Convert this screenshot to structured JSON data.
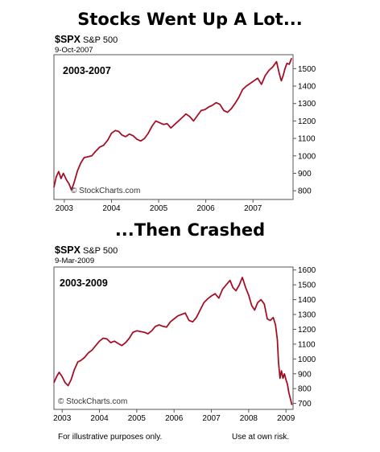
{
  "headline_top": "Stocks Went Up A Lot...",
  "headline_bottom": "...Then Crashed",
  "footer": {
    "left": "For illustrative purposes only.",
    "right": "Use at own risk."
  },
  "chart_data": [
    {
      "type": "line",
      "symbol": "$SPX",
      "index_name": "S&P 500",
      "date": "9-Oct-2007",
      "range_label": "2003-2007",
      "watermark": "© StockCharts.com",
      "x_ticks": [
        "2003",
        "2004",
        "2005",
        "2006",
        "2007"
      ],
      "x_tick_values": [
        2003.0,
        2004.0,
        2005.0,
        2006.0,
        2007.0
      ],
      "y_ticks": [
        800,
        900,
        1000,
        1100,
        1200,
        1300,
        1400,
        1500
      ],
      "ylim": [
        750,
        1580
      ],
      "xlim": [
        2002.78,
        2007.85
      ],
      "line_color": "#c0102a",
      "series": [
        {
          "x": [
            2002.78,
            2002.83,
            2002.88,
            2002.93,
            2002.98,
            2003.05,
            2003.1,
            2003.15,
            2003.2,
            2003.28,
            2003.35,
            2003.42,
            2003.5,
            2003.58,
            2003.66,
            2003.75,
            2003.83,
            2003.92,
            2004.0,
            2004.08,
            2004.15,
            2004.22,
            2004.3,
            2004.38,
            2004.46,
            2004.54,
            2004.62,
            2004.7,
            2004.78,
            2004.86,
            2004.94,
            2005.02,
            2005.1,
            2005.18,
            2005.26,
            2005.34,
            2005.42,
            2005.5,
            2005.58,
            2005.66,
            2005.74,
            2005.82,
            2005.9,
            2005.98,
            2006.06,
            2006.14,
            2006.22,
            2006.3,
            2006.38,
            2006.46,
            2006.54,
            2006.62,
            2006.7,
            2006.78,
            2006.86,
            2006.94,
            2007.02,
            2007.1,
            2007.18,
            2007.26,
            2007.34,
            2007.42,
            2007.5,
            2007.56,
            2007.6,
            2007.64,
            2007.68,
            2007.72,
            2007.77,
            2007.82
          ],
          "y": [
            820,
            880,
            910,
            870,
            900,
            860,
            840,
            805,
            840,
            915,
            960,
            990,
            995,
            1000,
            1025,
            1050,
            1060,
            1090,
            1130,
            1145,
            1140,
            1120,
            1110,
            1125,
            1115,
            1095,
            1085,
            1100,
            1130,
            1170,
            1200,
            1190,
            1180,
            1185,
            1160,
            1180,
            1200,
            1220,
            1240,
            1225,
            1200,
            1230,
            1260,
            1265,
            1280,
            1290,
            1305,
            1295,
            1260,
            1250,
            1270,
            1300,
            1335,
            1380,
            1400,
            1415,
            1430,
            1445,
            1410,
            1460,
            1490,
            1510,
            1540,
            1470,
            1430,
            1460,
            1500,
            1530,
            1525,
            1560
          ]
        }
      ]
    },
    {
      "type": "line",
      "symbol": "$SPX",
      "index_name": "S&P 500",
      "date": "9-Mar-2009",
      "range_label": "2003-2009",
      "watermark": "© StockCharts.com",
      "x_ticks": [
        "2003",
        "2004",
        "2005",
        "2006",
        "2007",
        "2008",
        "2009"
      ],
      "x_tick_values": [
        2003.0,
        2004.0,
        2005.0,
        2006.0,
        2007.0,
        2008.0,
        2009.0
      ],
      "y_ticks": [
        700,
        800,
        900,
        1000,
        1100,
        1200,
        1300,
        1400,
        1500,
        1600
      ],
      "ylim": [
        660,
        1620
      ],
      "xlim": [
        2002.78,
        2009.19
      ],
      "line_color": "#c0102a",
      "series": [
        {
          "x": [
            2002.78,
            2002.85,
            2002.92,
            2003.0,
            2003.08,
            2003.16,
            2003.24,
            2003.33,
            2003.42,
            2003.5,
            2003.6,
            2003.7,
            2003.8,
            2003.9,
            2004.0,
            2004.1,
            2004.2,
            2004.3,
            2004.4,
            2004.5,
            2004.6,
            2004.7,
            2004.8,
            2004.9,
            2005.0,
            2005.1,
            2005.2,
            2005.3,
            2005.4,
            2005.5,
            2005.6,
            2005.7,
            2005.8,
            2005.9,
            2006.0,
            2006.1,
            2006.2,
            2006.3,
            2006.4,
            2006.5,
            2006.6,
            2006.7,
            2006.8,
            2006.9,
            2007.0,
            2007.1,
            2007.2,
            2007.3,
            2007.4,
            2007.5,
            2007.58,
            2007.66,
            2007.75,
            2007.83,
            2007.92,
            2008.0,
            2008.08,
            2008.16,
            2008.24,
            2008.33,
            2008.42,
            2008.5,
            2008.58,
            2008.66,
            2008.72,
            2008.77,
            2008.8,
            2008.84,
            2008.88,
            2008.92,
            2008.96,
            2009.0,
            2009.04,
            2009.08,
            2009.12,
            2009.16
          ],
          "y": [
            840,
            880,
            910,
            880,
            840,
            820,
            860,
            930,
            980,
            990,
            1010,
            1040,
            1060,
            1090,
            1120,
            1140,
            1135,
            1110,
            1120,
            1105,
            1090,
            1110,
            1140,
            1180,
            1190,
            1185,
            1180,
            1170,
            1190,
            1220,
            1230,
            1220,
            1215,
            1250,
            1270,
            1290,
            1300,
            1310,
            1260,
            1250,
            1280,
            1330,
            1380,
            1405,
            1425,
            1440,
            1410,
            1470,
            1500,
            1530,
            1480,
            1460,
            1500,
            1550,
            1480,
            1430,
            1360,
            1330,
            1380,
            1400,
            1370,
            1270,
            1260,
            1280,
            1230,
            1130,
            980,
            870,
            920,
            870,
            900,
            860,
            830,
            770,
            730,
            690
          ]
        }
      ]
    }
  ]
}
